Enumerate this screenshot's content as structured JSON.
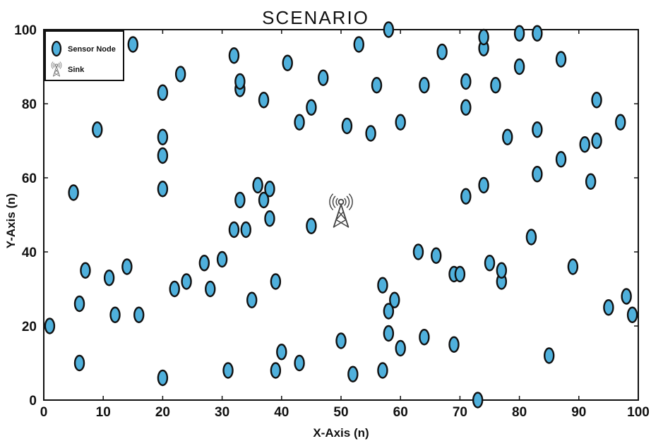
{
  "chart_data": {
    "type": "scatter",
    "title": "SCENARIO",
    "xlabel": "X-Axis (n)",
    "ylabel": "Y-Axis (n)",
    "xlim": [
      0,
      100
    ],
    "ylim": [
      0,
      100
    ],
    "xticks": [
      "0",
      "10",
      "20",
      "30",
      "40",
      "50",
      "60",
      "70",
      "80",
      "90",
      "100"
    ],
    "yticks": [
      "0",
      "20",
      "40",
      "60",
      "80",
      "100"
    ],
    "grid": false,
    "legend_position": "top-left",
    "legend": [
      {
        "label": "Sensor Node",
        "marker": "ellipse",
        "color": "#4fb0dc"
      },
      {
        "label": "Sink",
        "marker": "antenna-tower",
        "color": "#777777"
      }
    ],
    "colors": {
      "node_fill": "#4fb0dc",
      "node_stroke": "#111111",
      "sink": "#444444"
    },
    "series": [
      {
        "name": "Sensor Node",
        "points": [
          [
            1,
            20
          ],
          [
            6,
            10
          ],
          [
            6,
            26
          ],
          [
            5,
            56
          ],
          [
            7,
            35
          ],
          [
            9,
            73
          ],
          [
            11,
            33
          ],
          [
            12,
            23
          ],
          [
            14,
            36
          ],
          [
            15,
            96
          ],
          [
            16,
            23
          ],
          [
            20,
            6
          ],
          [
            20,
            57
          ],
          [
            20,
            66
          ],
          [
            20,
            71
          ],
          [
            20,
            83
          ],
          [
            22,
            30
          ],
          [
            23,
            88
          ],
          [
            24,
            32
          ],
          [
            27,
            37
          ],
          [
            28,
            30
          ],
          [
            30,
            38
          ],
          [
            31,
            8
          ],
          [
            32,
            46
          ],
          [
            32,
            93
          ],
          [
            33,
            54
          ],
          [
            33,
            84
          ],
          [
            33,
            86
          ],
          [
            34,
            46
          ],
          [
            35,
            27
          ],
          [
            36,
            58
          ],
          [
            37,
            54
          ],
          [
            37,
            81
          ],
          [
            38,
            49
          ],
          [
            38,
            57
          ],
          [
            39,
            8
          ],
          [
            39,
            32
          ],
          [
            40,
            13
          ],
          [
            41,
            91
          ],
          [
            43,
            10
          ],
          [
            43,
            75
          ],
          [
            45,
            47
          ],
          [
            45,
            79
          ],
          [
            47,
            87
          ],
          [
            50,
            16
          ],
          [
            51,
            74
          ],
          [
            52,
            7
          ],
          [
            53,
            96
          ],
          [
            55,
            72
          ],
          [
            56,
            85
          ],
          [
            57,
            8
          ],
          [
            57,
            31
          ],
          [
            58,
            18
          ],
          [
            58,
            24
          ],
          [
            58,
            100
          ],
          [
            59,
            27
          ],
          [
            60,
            14
          ],
          [
            60,
            75
          ],
          [
            63,
            40
          ],
          [
            64,
            17
          ],
          [
            64,
            85
          ],
          [
            66,
            39
          ],
          [
            67,
            94
          ],
          [
            69,
            15
          ],
          [
            69,
            34
          ],
          [
            70,
            34
          ],
          [
            71,
            55
          ],
          [
            71,
            79
          ],
          [
            71,
            86
          ],
          [
            73,
            0
          ],
          [
            74,
            58
          ],
          [
            74,
            95
          ],
          [
            74,
            98
          ],
          [
            75,
            37
          ],
          [
            76,
            85
          ],
          [
            77,
            32
          ],
          [
            77,
            35
          ],
          [
            78,
            71
          ],
          [
            80,
            90
          ],
          [
            80,
            99
          ],
          [
            82,
            44
          ],
          [
            83,
            61
          ],
          [
            83,
            73
          ],
          [
            83,
            99
          ],
          [
            85,
            12
          ],
          [
            87,
            65
          ],
          [
            87,
            92
          ],
          [
            89,
            36
          ],
          [
            91,
            69
          ],
          [
            92,
            59
          ],
          [
            93,
            70
          ],
          [
            93,
            81
          ],
          [
            95,
            25
          ],
          [
            97,
            75
          ],
          [
            98,
            28
          ],
          [
            99,
            23
          ]
        ]
      },
      {
        "name": "Sink",
        "points": [
          [
            50,
            50
          ]
        ]
      }
    ]
  }
}
